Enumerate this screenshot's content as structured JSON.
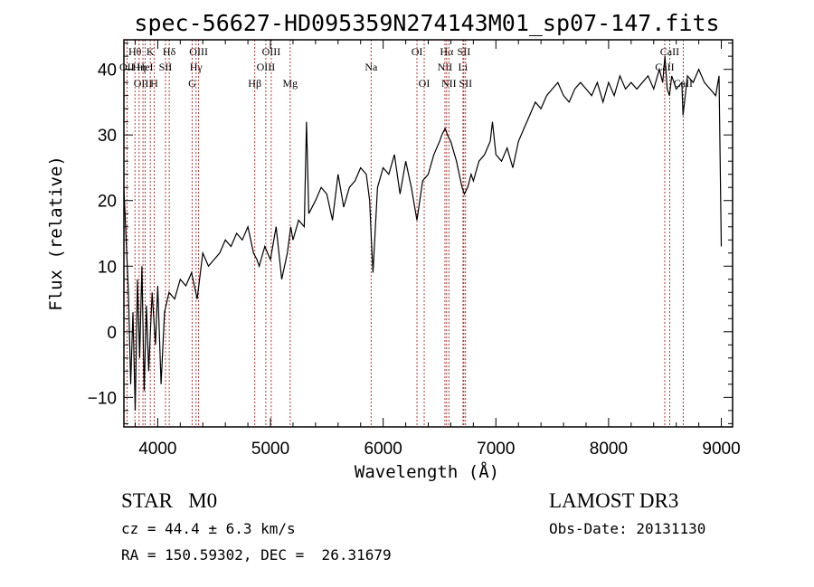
{
  "chart_data": {
    "type": "line",
    "title": "spec-56627-HD095359N274143M01_sp07-147.fits",
    "xlabel": "Wavelength (Å)",
    "ylabel": "Flux (relative)",
    "xlim": [
      3700,
      9100
    ],
    "ylim": [
      -14.5,
      44.5
    ],
    "xticks": [
      4000,
      5000,
      6000,
      7000,
      8000,
      9000
    ],
    "yticks": [
      -10,
      0,
      10,
      20,
      30,
      40
    ],
    "grid": false,
    "series": [
      {
        "name": "flux",
        "x": [
          3700,
          3740,
          3760,
          3780,
          3800,
          3820,
          3840,
          3860,
          3880,
          3900,
          3920,
          3950,
          3980,
          4000,
          4030,
          4060,
          4100,
          4150,
          4200,
          4250,
          4300,
          4350,
          4400,
          4450,
          4500,
          4550,
          4600,
          4650,
          4700,
          4750,
          4800,
          4850,
          4880,
          4900,
          4950,
          5000,
          5050,
          5100,
          5150,
          5180,
          5200,
          5250,
          5300,
          5320,
          5340,
          5400,
          5450,
          5500,
          5550,
          5600,
          5650,
          5700,
          5750,
          5800,
          5850,
          5880,
          5895,
          5910,
          5950,
          6000,
          6050,
          6100,
          6150,
          6200,
          6250,
          6300,
          6350,
          6400,
          6450,
          6500,
          6520,
          6550,
          6570,
          6600,
          6650,
          6700,
          6720,
          6750,
          6780,
          6800,
          6850,
          6900,
          6950,
          6970,
          7000,
          7050,
          7100,
          7150,
          7200,
          7250,
          7300,
          7350,
          7400,
          7450,
          7500,
          7550,
          7600,
          7650,
          7700,
          7750,
          7800,
          7850,
          7900,
          7950,
          8000,
          8050,
          8100,
          8150,
          8200,
          8250,
          8300,
          8350,
          8400,
          8450,
          8480,
          8500,
          8520,
          8540,
          8560,
          8600,
          8650,
          8660,
          8700,
          8750,
          8800,
          8850,
          8900,
          8950,
          8980,
          9000
        ],
        "values": [
          22,
          6,
          -8,
          3,
          -12,
          8,
          -4,
          10,
          -9,
          4,
          -6,
          6,
          -2,
          7,
          -8,
          3,
          6,
          5,
          8,
          7,
          9,
          5,
          12,
          10,
          11,
          12,
          14,
          13,
          15,
          14,
          16,
          12,
          11,
          10,
          13,
          11,
          16,
          8,
          12,
          16,
          14,
          17,
          16,
          32,
          18,
          20,
          22,
          21,
          17,
          24,
          19,
          22,
          23,
          25,
          24,
          20,
          14,
          9,
          22,
          25,
          24,
          27,
          21,
          26,
          22,
          17,
          23,
          24,
          27,
          29,
          30,
          31,
          30,
          29,
          26,
          22,
          21,
          22,
          24,
          23,
          26,
          27,
          29,
          32,
          27,
          26,
          28,
          25,
          29,
          31,
          33,
          35,
          34,
          36,
          37,
          38,
          36,
          35,
          37,
          38,
          37,
          36,
          38,
          35,
          38,
          36,
          39,
          37,
          38,
          37,
          38,
          39,
          37,
          40,
          38,
          42,
          37,
          36,
          39,
          37,
          38,
          33,
          39,
          38,
          40,
          38,
          37,
          36,
          39,
          13
        ]
      }
    ],
    "line_markers": [
      {
        "label": "Hθ",
        "x": 3798,
        "row": 0
      },
      {
        "label": "OII",
        "x": 3727,
        "row": 1
      },
      {
        "label": "OIII",
        "x": 3869,
        "row": 2
      },
      {
        "label": "Hη",
        "x": 3835,
        "row": 1
      },
      {
        "label": "HeI",
        "x": 3889,
        "row": 1
      },
      {
        "label": "K",
        "x": 3934,
        "row": 0
      },
      {
        "label": "H",
        "x": 3968,
        "row": 2
      },
      {
        "label": "SII",
        "x": 4069,
        "row": 1
      },
      {
        "label": "Hδ",
        "x": 4102,
        "row": 0
      },
      {
        "label": "Hγ",
        "x": 4340,
        "row": 1
      },
      {
        "label": "OIII",
        "x": 4363,
        "row": 0
      },
      {
        "label": "G",
        "x": 4305,
        "row": 2
      },
      {
        "label": "Hβ",
        "x": 4861,
        "row": 2
      },
      {
        "label": "OIII",
        "x": 4959,
        "row": 1
      },
      {
        "label": "OIII",
        "x": 5007,
        "row": 0
      },
      {
        "label": "Mg",
        "x": 5175,
        "row": 2
      },
      {
        "label": "Na",
        "x": 5893,
        "row": 1
      },
      {
        "label": "OI",
        "x": 6300,
        "row": 0
      },
      {
        "label": "OI",
        "x": 6364,
        "row": 2
      },
      {
        "label": "NII",
        "x": 6548,
        "row": 1
      },
      {
        "label": "Hα",
        "x": 6563,
        "row": 0
      },
      {
        "label": "NII",
        "x": 6583,
        "row": 2
      },
      {
        "label": "SII",
        "x": 6716,
        "row": 0
      },
      {
        "label": "Li",
        "x": 6708,
        "row": 1
      },
      {
        "label": "SII",
        "x": 6731,
        "row": 2
      },
      {
        "label": "CaII",
        "x": 8498,
        "row": 1
      },
      {
        "label": "CaII",
        "x": 8542,
        "row": 0
      },
      {
        "label": "CaII",
        "x": 8662,
        "row": 2
      }
    ],
    "info": {
      "object": "STAR   M0",
      "cz": "cz = 44.4 ± 6.3 km/s",
      "coords": "RA = 150.59302, DEC =  26.31679",
      "survey": "LAMOST DR3",
      "obs_date": "Obs-Date: 20131130"
    }
  }
}
